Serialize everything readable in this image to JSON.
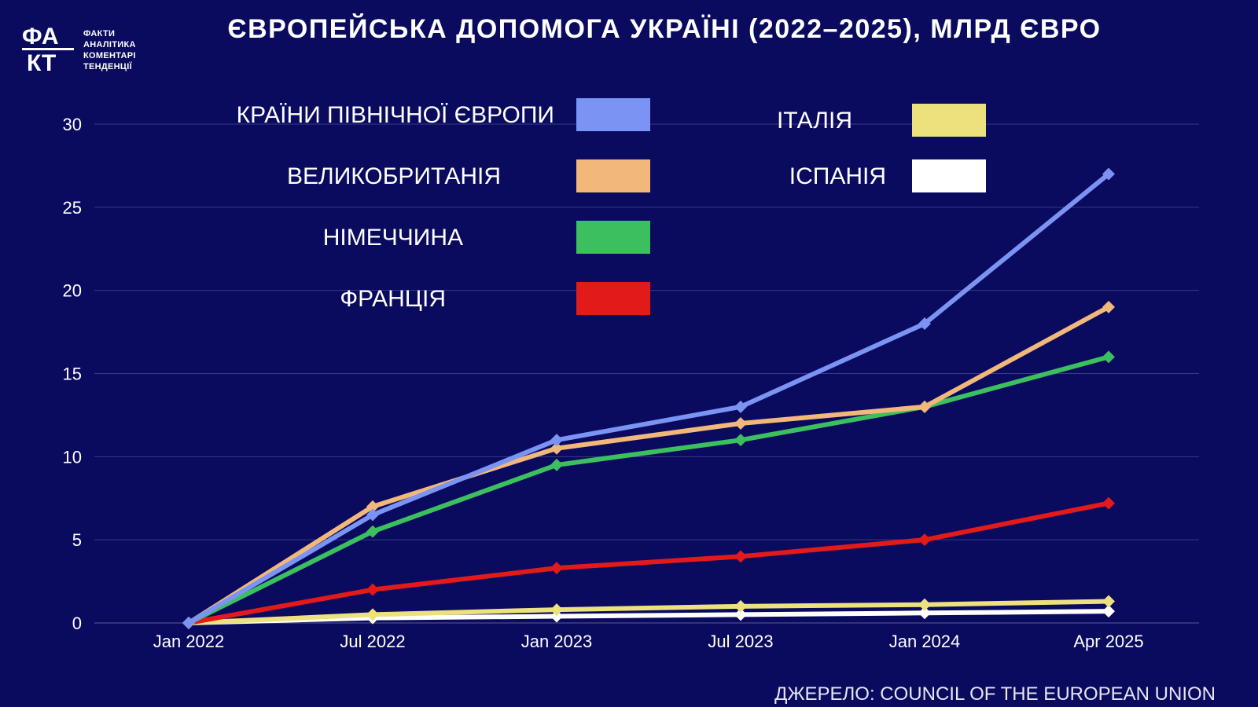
{
  "title": "ЄВРОПЕЙСЬКА ДОПОМОГА УКРАЇНІ (2022–2025), МЛРД ЄВРО",
  "logo": {
    "mark_top": "ФА",
    "mark_bottom": "КТ",
    "words": [
      "ФАКТИ",
      "АНАЛІТИКА",
      "КОМЕНТАРІ",
      "ТЕНДЕНЦІЇ"
    ]
  },
  "source": "ДЖЕРЕЛО: COUNCIL OF THE EUROPEAN UNION",
  "chart_data": {
    "type": "line",
    "x": [
      "Jan 2022",
      "Jul 2022",
      "Jan 2023",
      "Jul 2023",
      "Jan 2024",
      "Apr 2025"
    ],
    "ylim": [
      0,
      30
    ],
    "yticks": [
      0,
      5,
      10,
      15,
      20,
      25,
      30
    ],
    "grid": true,
    "marker": "diamond",
    "series": [
      {
        "name": "КРАЇНИ ПІВНІЧНОЇ ЄВРОПИ",
        "color": "#7b93f2",
        "values": [
          0,
          6.5,
          11,
          13,
          18,
          27
        ]
      },
      {
        "name": "ВЕЛИКОБРИТАНІЯ",
        "color": "#f2b87a",
        "values": [
          0,
          7,
          10.5,
          12,
          13,
          19
        ]
      },
      {
        "name": "НІМЕЧЧИНА",
        "color": "#3cbf5e",
        "values": [
          0,
          5.5,
          9.5,
          11,
          13,
          16
        ]
      },
      {
        "name": "ФРАНЦІЯ",
        "color": "#e21a1a",
        "values": [
          0,
          2,
          3.3,
          4,
          5,
          7.2
        ]
      },
      {
        "name": "ІТАЛІЯ",
        "color": "#ece17d",
        "values": [
          0,
          0.5,
          0.8,
          1,
          1.1,
          1.3
        ]
      },
      {
        "name": "ІСПАНІЯ",
        "color": "#ffffff",
        "values": [
          0,
          0.3,
          0.4,
          0.5,
          0.6,
          0.7
        ]
      }
    ]
  }
}
